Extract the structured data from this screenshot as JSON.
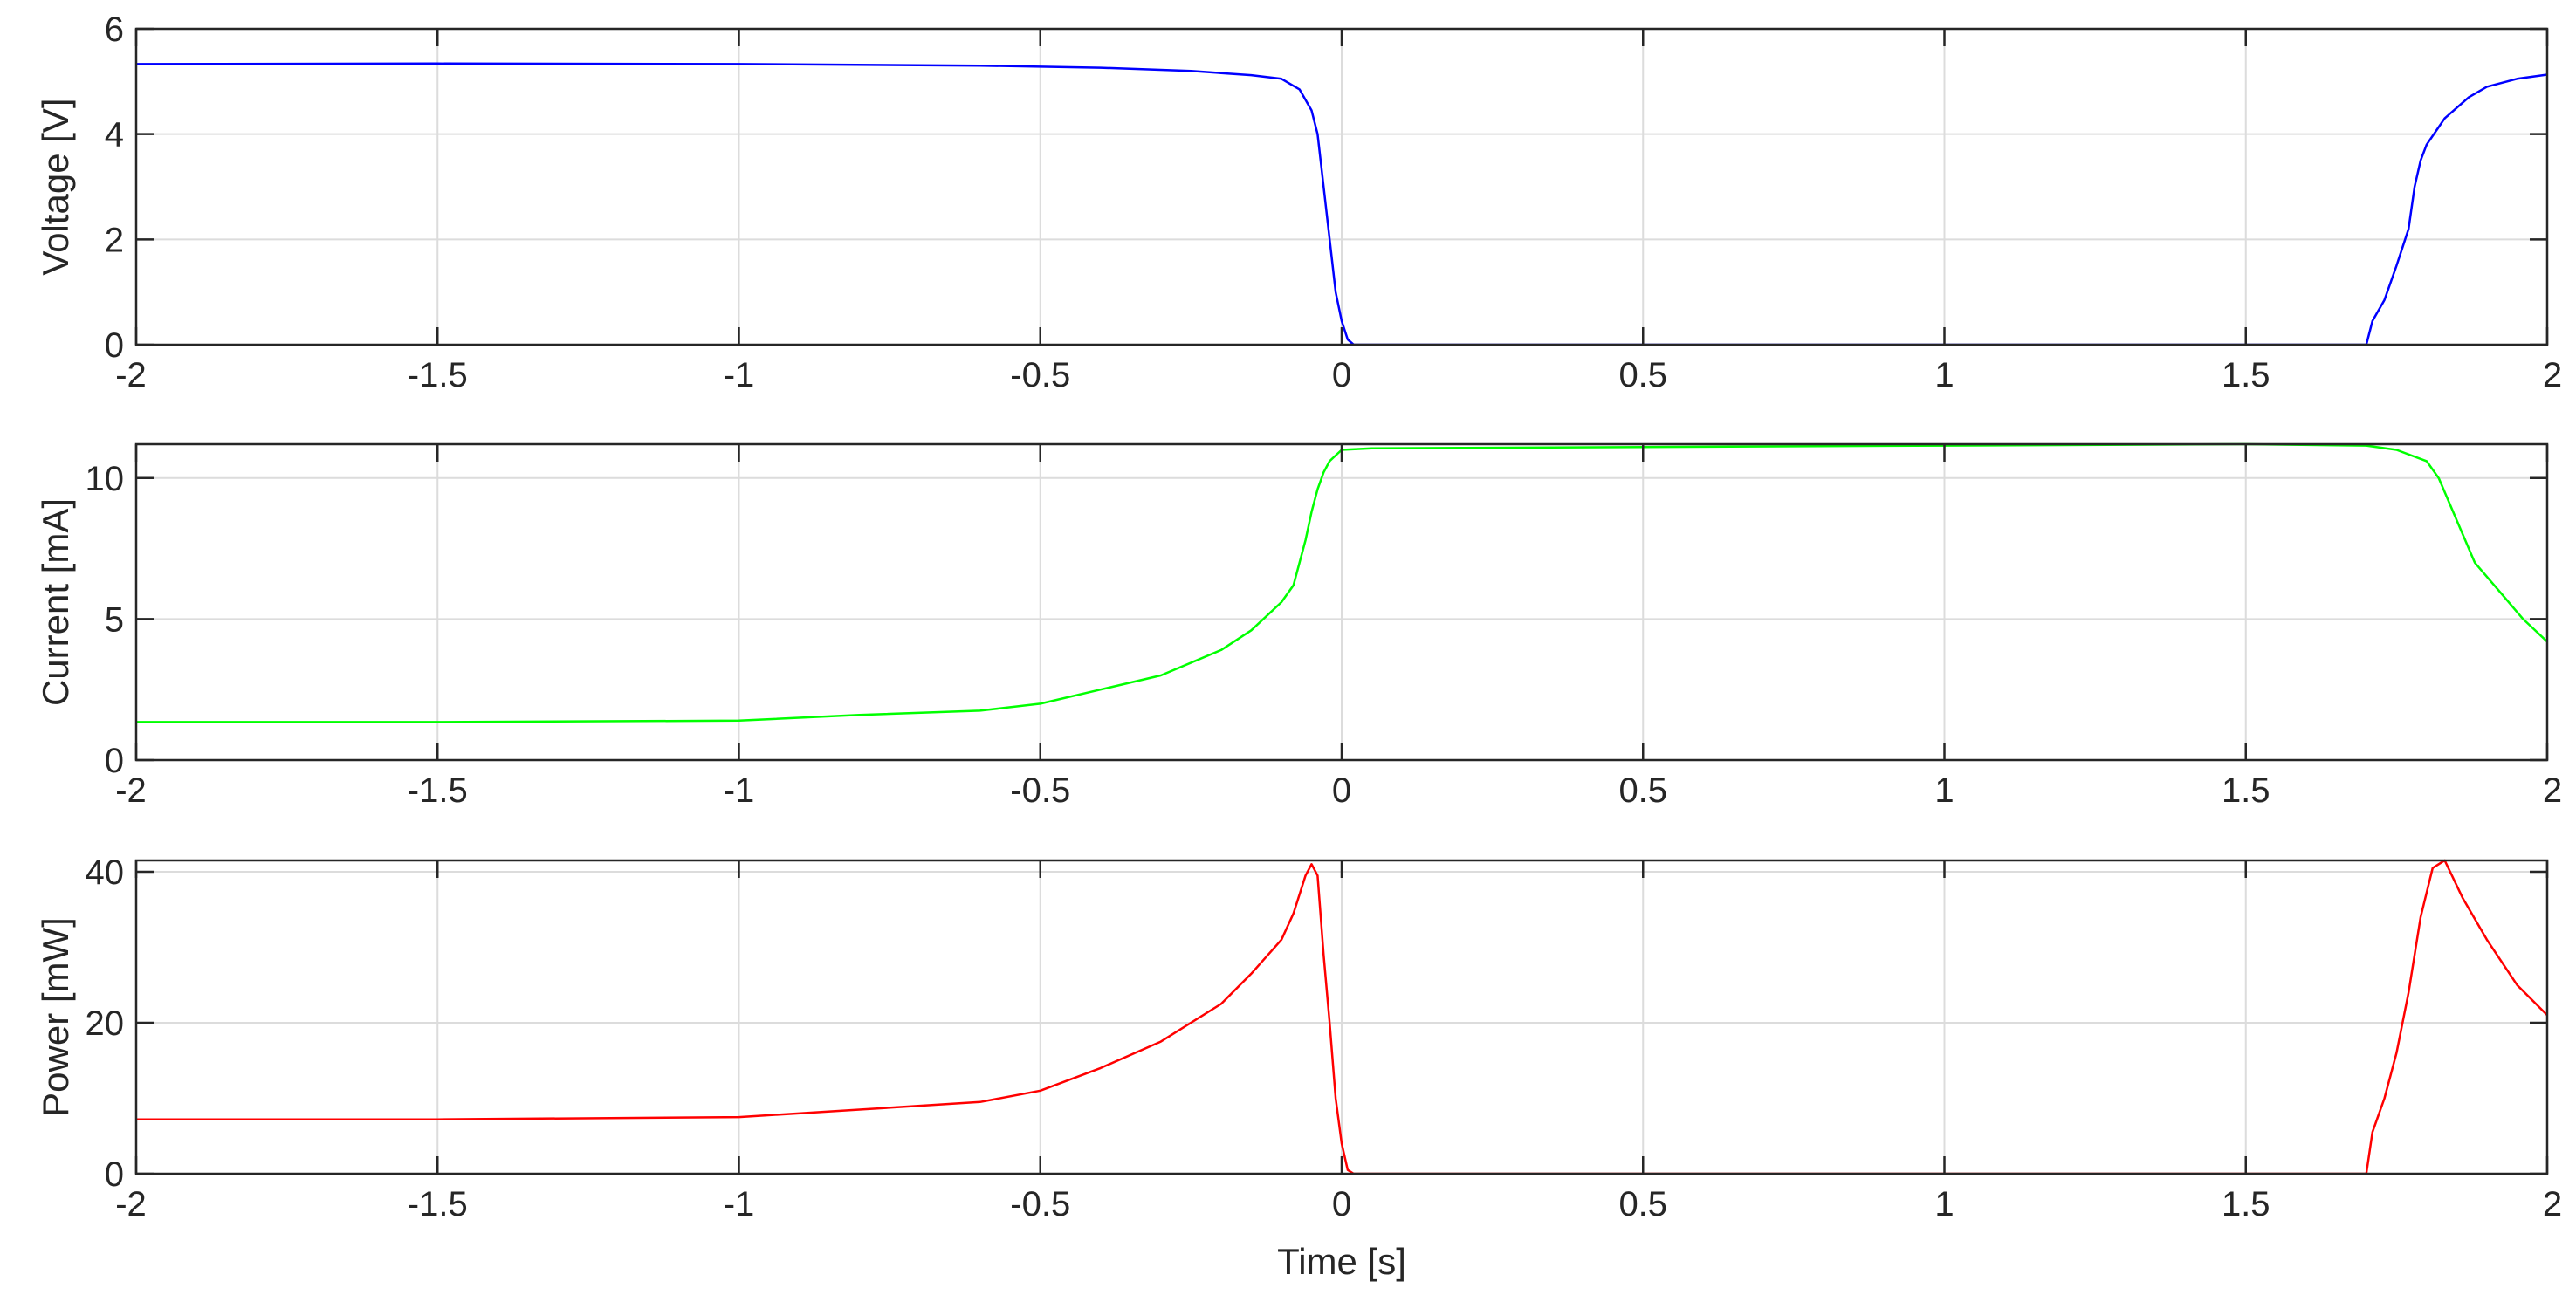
{
  "chart_data": [
    {
      "type": "line",
      "ylabel": "Voltage [V]",
      "xlabel": "",
      "xlim": [
        -2,
        2
      ],
      "ylim": [
        0,
        6
      ],
      "xticks": [
        "-2",
        "-1.5",
        "-1",
        "-0.5",
        "0",
        "0.5",
        "1",
        "1.5",
        "2"
      ],
      "yticks": [
        "0",
        "2",
        "4",
        "6"
      ],
      "grid": true,
      "series": [
        {
          "color": "#0000ff",
          "x": [
            -2.0,
            -1.5,
            -1.0,
            -0.6,
            -0.4,
            -0.25,
            -0.15,
            -0.1,
            -0.07,
            -0.05,
            -0.04,
            -0.03,
            -0.02,
            -0.01,
            0.0,
            0.01,
            0.02,
            0.03,
            0.5,
            1.0,
            1.5,
            1.7,
            1.71,
            1.73,
            1.75,
            1.77,
            1.78,
            1.79,
            1.8,
            1.83,
            1.87,
            1.9,
            1.95,
            2.0
          ],
          "y": [
            5.33,
            5.34,
            5.33,
            5.3,
            5.26,
            5.2,
            5.12,
            5.05,
            4.85,
            4.45,
            4.0,
            3.0,
            2.0,
            1.0,
            0.45,
            0.1,
            0.0,
            0.0,
            0.0,
            0.0,
            0.0,
            0.0,
            0.45,
            0.85,
            1.5,
            2.2,
            3.0,
            3.5,
            3.8,
            4.3,
            4.7,
            4.9,
            5.05,
            5.13
          ]
        }
      ]
    },
    {
      "type": "line",
      "ylabel": "Current [mA]",
      "xlabel": "",
      "xlim": [
        -2,
        2
      ],
      "ylim": [
        0,
        11.2
      ],
      "xticks": [
        "-2",
        "-1.5",
        "-1",
        "-0.5",
        "0",
        "0.5",
        "1",
        "1.5",
        "2"
      ],
      "yticks": [
        "0",
        "5",
        "10"
      ],
      "grid": true,
      "series": [
        {
          "color": "#00ff00",
          "x": [
            -2.0,
            -1.5,
            -1.0,
            -0.8,
            -0.6,
            -0.5,
            -0.4,
            -0.3,
            -0.2,
            -0.15,
            -0.1,
            -0.08,
            -0.06,
            -0.05,
            -0.04,
            -0.03,
            -0.02,
            -0.01,
            0.0,
            0.05,
            0.5,
            1.0,
            1.5,
            1.7,
            1.75,
            1.8,
            1.82,
            1.85,
            1.88,
            1.92,
            1.96,
            2.0
          ],
          "y": [
            1.35,
            1.35,
            1.4,
            1.6,
            1.75,
            2.0,
            2.5,
            3.0,
            3.9,
            4.6,
            5.6,
            6.2,
            7.8,
            8.8,
            9.6,
            10.2,
            10.6,
            10.8,
            11.0,
            11.05,
            11.1,
            11.15,
            11.2,
            11.15,
            11.0,
            10.6,
            10.0,
            8.5,
            7.0,
            6.0,
            5.0,
            4.2
          ]
        }
      ]
    },
    {
      "type": "line",
      "ylabel": "Power [mW]",
      "xlabel": "Time [s]",
      "xlim": [
        -2,
        2
      ],
      "ylim": [
        0,
        41.5
      ],
      "xticks": [
        "-2",
        "-1.5",
        "-1",
        "-0.5",
        "0",
        "0.5",
        "1",
        "1.5",
        "2"
      ],
      "yticks": [
        "0",
        "20",
        "40"
      ],
      "grid": true,
      "series": [
        {
          "color": "#ff0000",
          "x": [
            -2.0,
            -1.5,
            -1.0,
            -0.8,
            -0.6,
            -0.5,
            -0.4,
            -0.3,
            -0.2,
            -0.15,
            -0.1,
            -0.08,
            -0.06,
            -0.05,
            -0.04,
            -0.03,
            -0.02,
            -0.01,
            0.0,
            0.01,
            0.02,
            0.03,
            0.5,
            1.0,
            1.5,
            1.7,
            1.71,
            1.73,
            1.75,
            1.77,
            1.79,
            1.81,
            1.83,
            1.86,
            1.9,
            1.95,
            2.0
          ],
          "y": [
            7.2,
            7.2,
            7.5,
            8.5,
            9.5,
            11.0,
            14.0,
            17.5,
            22.5,
            26.5,
            31.0,
            34.5,
            39.5,
            41.0,
            39.5,
            29.0,
            20.0,
            10.0,
            4.0,
            0.5,
            0.0,
            0.0,
            0.0,
            0.0,
            0.0,
            0.0,
            5.5,
            10.0,
            16.0,
            24.0,
            34.0,
            40.5,
            41.5,
            36.5,
            31.0,
            25.0,
            21.0
          ]
        }
      ]
    }
  ]
}
